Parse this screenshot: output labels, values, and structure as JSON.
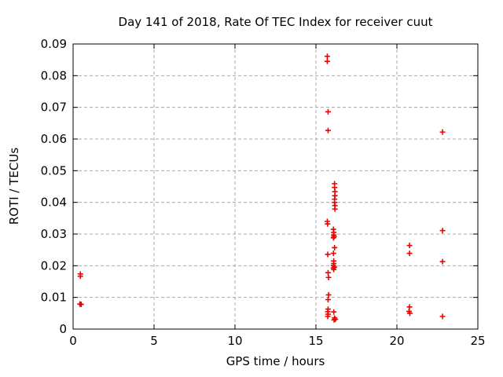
{
  "page": {
    "background": "#ffffff"
  },
  "chart_data": {
    "type": "scatter",
    "title": "Day 141 of 2018, Rate Of TEC Index for receiver cuut",
    "xlabel": "GPS time / hours",
    "ylabel": "ROTI / TECUs",
    "xlim": [
      0,
      25
    ],
    "ylim": [
      0,
      0.09
    ],
    "xticks": [
      {
        "v": 0,
        "label": "0"
      },
      {
        "v": 5,
        "label": "5"
      },
      {
        "v": 10,
        "label": "10"
      },
      {
        "v": 15,
        "label": "15"
      },
      {
        "v": 20,
        "label": "20"
      },
      {
        "v": 25,
        "label": "25"
      }
    ],
    "yticks": [
      {
        "v": 0,
        "label": "0"
      },
      {
        "v": 0.01,
        "label": "0.01"
      },
      {
        "v": 0.02,
        "label": "0.02"
      },
      {
        "v": 0.03,
        "label": "0.03"
      },
      {
        "v": 0.04,
        "label": "0.04"
      },
      {
        "v": 0.05,
        "label": "0.05"
      },
      {
        "v": 0.06,
        "label": "0.06"
      },
      {
        "v": 0.07,
        "label": "0.07"
      },
      {
        "v": 0.08,
        "label": "0.08"
      },
      {
        "v": 0.09,
        "label": "0.09"
      }
    ],
    "grid": true,
    "legend_position": "none",
    "colors": {
      "marker": "#ee0000",
      "grid": "#a8a8a8",
      "border": "#000000"
    },
    "marker": {
      "shape": "plus",
      "size": 7
    },
    "series": [
      {
        "name": "ROTI",
        "points": [
          [
            0.45,
            0.0174
          ],
          [
            0.45,
            0.0167
          ],
          [
            0.42,
            0.0079
          ],
          [
            0.5,
            0.0078
          ],
          [
            15.7,
            0.0861
          ],
          [
            15.7,
            0.0845
          ],
          [
            15.75,
            0.0686
          ],
          [
            15.75,
            0.0627
          ],
          [
            16.15,
            0.0459
          ],
          [
            16.15,
            0.0447
          ],
          [
            16.17,
            0.0434
          ],
          [
            16.17,
            0.0421
          ],
          [
            16.15,
            0.041
          ],
          [
            16.15,
            0.04
          ],
          [
            16.17,
            0.039
          ],
          [
            16.17,
            0.0379
          ],
          [
            15.7,
            0.034
          ],
          [
            15.72,
            0.0332
          ],
          [
            16.08,
            0.0315
          ],
          [
            16.1,
            0.0305
          ],
          [
            16.1,
            0.0297
          ],
          [
            16.12,
            0.0292
          ],
          [
            16.08,
            0.0288
          ],
          [
            16.15,
            0.0257
          ],
          [
            16.08,
            0.0239
          ],
          [
            15.73,
            0.0236
          ],
          [
            16.1,
            0.0215
          ],
          [
            16.1,
            0.0207
          ],
          [
            16.08,
            0.0201
          ],
          [
            16.14,
            0.0196
          ],
          [
            16.08,
            0.0193
          ],
          [
            16.1,
            0.0188
          ],
          [
            15.75,
            0.0178
          ],
          [
            15.78,
            0.0163
          ],
          [
            15.78,
            0.0108
          ],
          [
            15.75,
            0.0093
          ],
          [
            15.75,
            0.0063
          ],
          [
            15.73,
            0.0055
          ],
          [
            16.1,
            0.0054
          ],
          [
            15.75,
            0.0047
          ],
          [
            15.73,
            0.004
          ],
          [
            16.15,
            0.0035
          ],
          [
            16.2,
            0.0031
          ],
          [
            16.12,
            0.0029
          ],
          [
            20.78,
            0.0264
          ],
          [
            20.78,
            0.0239
          ],
          [
            20.78,
            0.007
          ],
          [
            20.75,
            0.0056
          ],
          [
            20.8,
            0.005
          ],
          [
            22.82,
            0.0622
          ],
          [
            22.82,
            0.0311
          ],
          [
            22.82,
            0.0213
          ],
          [
            22.82,
            0.004
          ]
        ]
      }
    ]
  }
}
